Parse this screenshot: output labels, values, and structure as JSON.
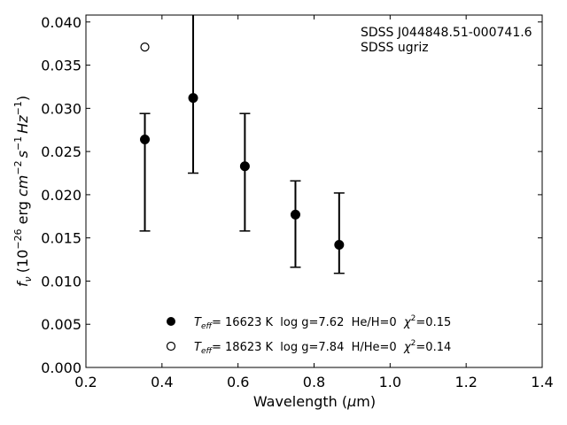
{
  "chart_data": {
    "type": "scatter",
    "annotations": [
      "SDSS J044848.51-000741.6",
      "SDSS ugriz"
    ],
    "xlabel": {
      "pre": "Wavelength (",
      "mu": "μ",
      "post": "m)"
    },
    "ylabel": {
      "f": "f",
      "nu": "ν",
      "unit": "(10",
      "e1": "−26",
      "mid": " erg ",
      "cm": "cm",
      "e2": "−2",
      "s": "s",
      "e3": "−1",
      "hz": "Hz",
      "e4": "−1",
      "close": ")"
    },
    "xlim": [
      0.2,
      1.4
    ],
    "ylim": [
      0.0,
      0.0408
    ],
    "xticks": [
      "0.2",
      "0.4",
      "0.6",
      "0.8",
      "1.0",
      "1.2",
      "1.4"
    ],
    "xtick_values": [
      0.2,
      0.4,
      0.6,
      0.8,
      1.0,
      1.2,
      1.4
    ],
    "yticks": [
      "0.000",
      "0.005",
      "0.010",
      "0.015",
      "0.020",
      "0.025",
      "0.030",
      "0.035",
      "0.040"
    ],
    "ytick_values": [
      0.0,
      0.005,
      0.01,
      0.015,
      0.02,
      0.025,
      0.03,
      0.035,
      0.04
    ],
    "grid": false,
    "legend_position": "bottom-center",
    "series": [
      {
        "name": "Teff= 16623 K log g=7.62 He/H=0 χ2=0.15",
        "marker": "filled-circle",
        "color": "#000000",
        "x": [
          0.355,
          0.482,
          0.618,
          0.751,
          0.866
        ],
        "y": [
          0.0264,
          0.0312,
          0.0233,
          0.0177,
          0.0142
        ],
        "yerr_low": [
          0.0158,
          0.0225,
          0.0158,
          0.0116,
          0.0109
        ],
        "yerr_high": [
          0.0294,
          0.0408,
          0.0294,
          0.0216,
          0.0202
        ]
      },
      {
        "name": "Teff= 18623 K log g=7.84 H/He=0 χ2=0.14",
        "marker": "open-circle",
        "color": "#000000",
        "x": [
          0.355
        ],
        "y": [
          0.0371
        ]
      }
    ],
    "legend": [
      {
        "marker": "filled-circle",
        "teff": "T",
        "teff_sub": "eff",
        "text": "= 16623 K  log g=7.62  He/H=0  ",
        "chi": "χ",
        "chi_sup": "2",
        "chi_val": "=0.15"
      },
      {
        "marker": "open-circle",
        "teff": "T",
        "teff_sub": "eff",
        "text": "= 18623 K  log g=7.84  H/He=0  ",
        "chi": "χ",
        "chi_sup": "2",
        "chi_val": "=0.14"
      }
    ]
  }
}
